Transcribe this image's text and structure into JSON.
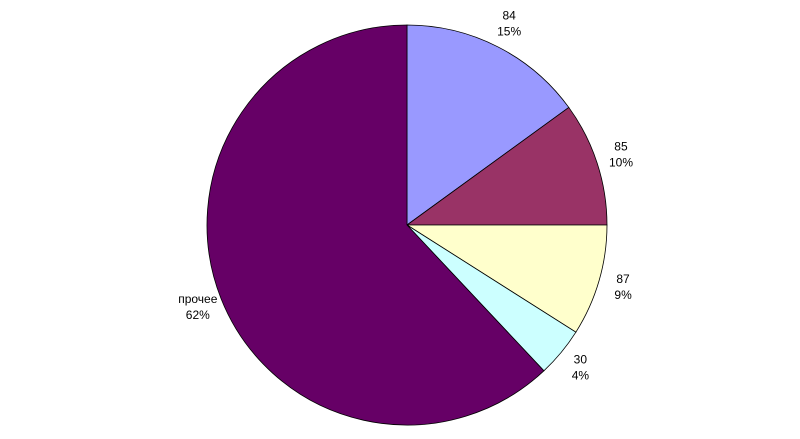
{
  "chart_data": {
    "type": "pie",
    "categories": [
      "84",
      "85",
      "87",
      "30",
      "прочее"
    ],
    "values": [
      15,
      10,
      9,
      4,
      62
    ],
    "value_labels": [
      "15%",
      "10%",
      "9%",
      "4%",
      "62%"
    ],
    "colors": [
      "#9999ff",
      "#993366",
      "#ffffcc",
      "#ccffff",
      "#660066"
    ]
  }
}
